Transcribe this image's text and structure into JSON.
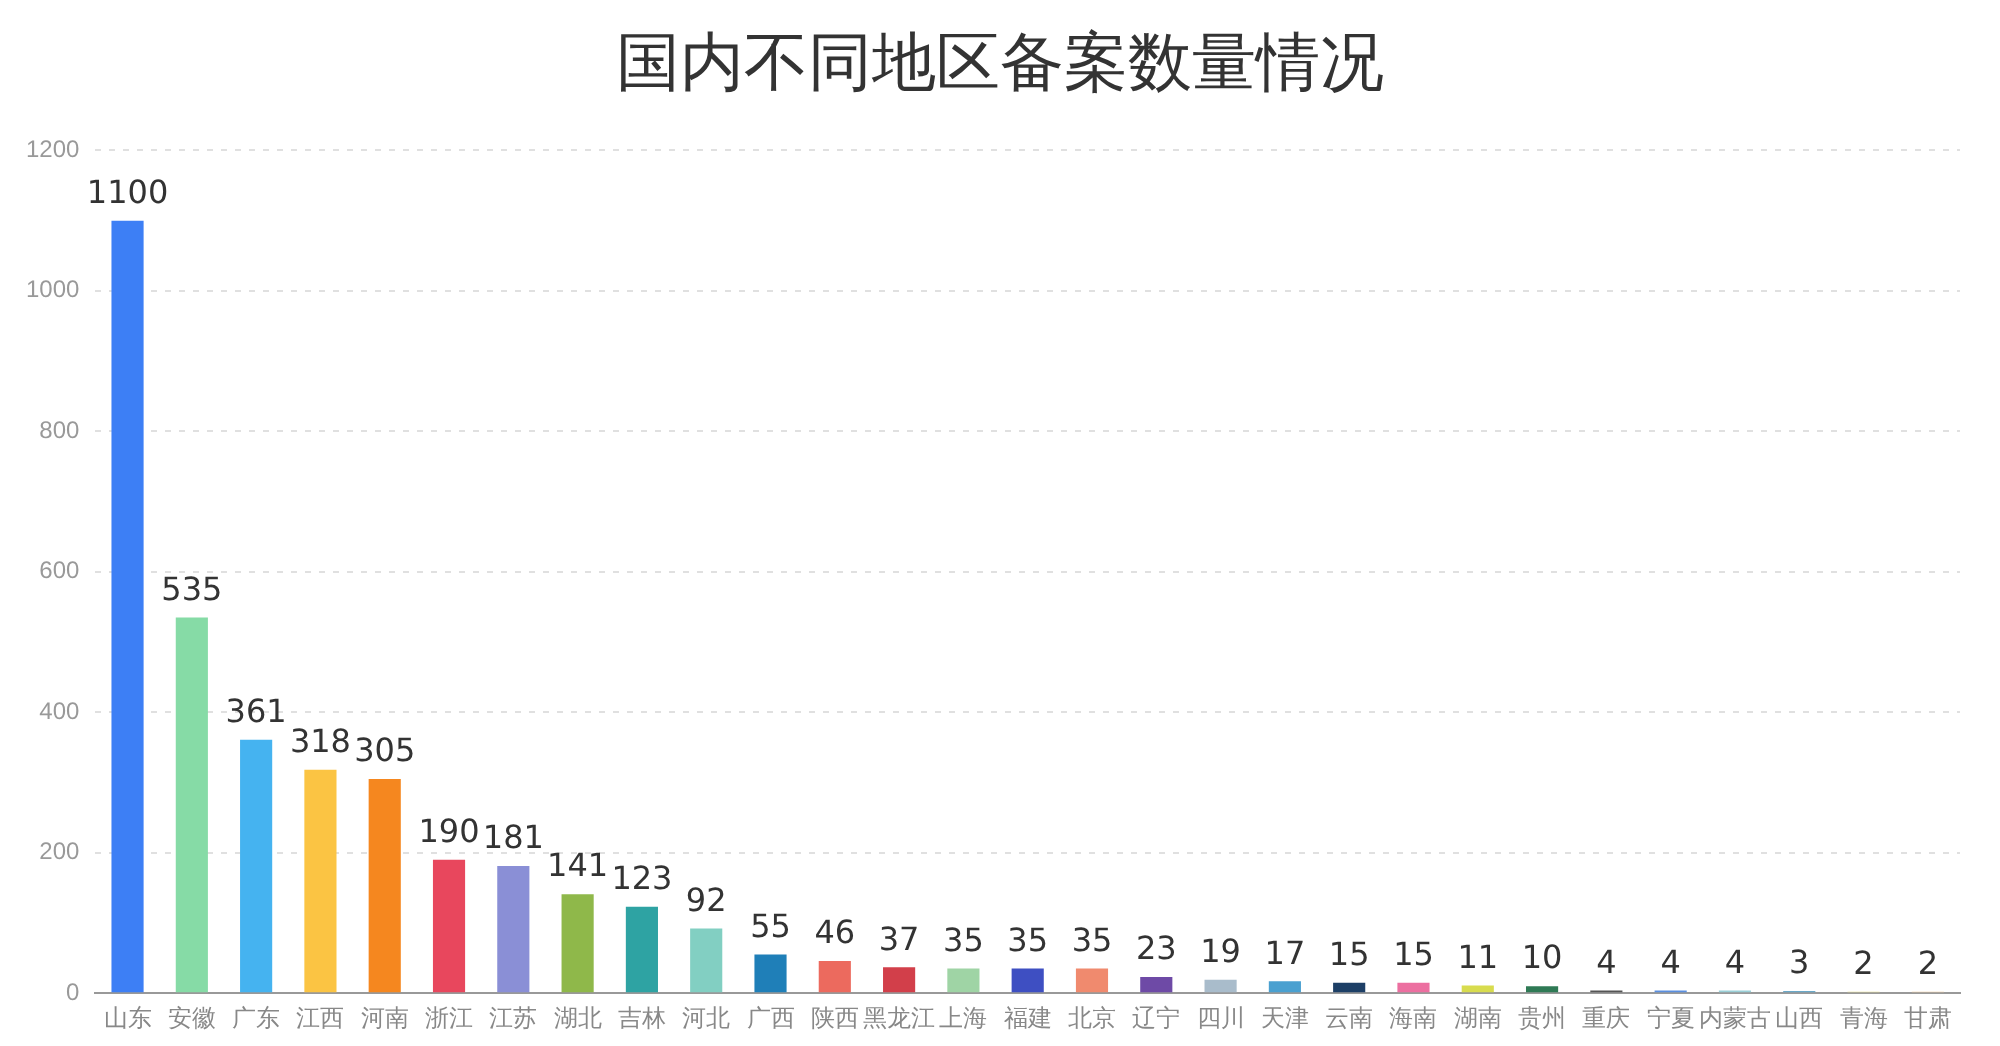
{
  "chart_data": {
    "type": "bar",
    "title": "国内不同地区备案数量情况",
    "categories": [
      "山东",
      "安徽",
      "广东",
      "江西",
      "河南",
      "浙江",
      "江苏",
      "湖北",
      "吉林",
      "河北",
      "广西",
      "陕西",
      "黑龙江",
      "上海",
      "福建",
      "北京",
      "辽宁",
      "四川",
      "天津",
      "云南",
      "海南",
      "湖南",
      "贵州",
      "重庆",
      "宁夏",
      "内蒙古",
      "山西",
      "青海",
      "甘肃"
    ],
    "values": [
      1100,
      535,
      361,
      318,
      305,
      190,
      181,
      141,
      123,
      92,
      55,
      46,
      37,
      35,
      35,
      35,
      23,
      19,
      17,
      15,
      15,
      11,
      10,
      4,
      4,
      4,
      3,
      2,
      2
    ],
    "colors": [
      "#3d7ff5",
      "#86dba6",
      "#45b3f0",
      "#fbc443",
      "#f5871f",
      "#e8475d",
      "#8a8fd6",
      "#8fb84a",
      "#2ea3a3",
      "#82cfc2",
      "#1f7fb8",
      "#ec6a5e",
      "#d23f4a",
      "#9fd4a5",
      "#3e4fc2",
      "#f08a6e",
      "#6e4aa6",
      "#a9bccb",
      "#4aa0d0",
      "#1d3f66",
      "#ec6fa0",
      "#d8dc4e",
      "#2f7a55",
      "#555555",
      "#5a8fe0",
      "#9ad0d8",
      "#6aa8c8",
      "#e8e090",
      "#f0c9a0"
    ],
    "ylim": [
      0,
      1200
    ],
    "yticks": [
      0,
      200,
      400,
      600,
      800,
      1000,
      1200
    ],
    "grid": "y",
    "data_labels": true
  }
}
